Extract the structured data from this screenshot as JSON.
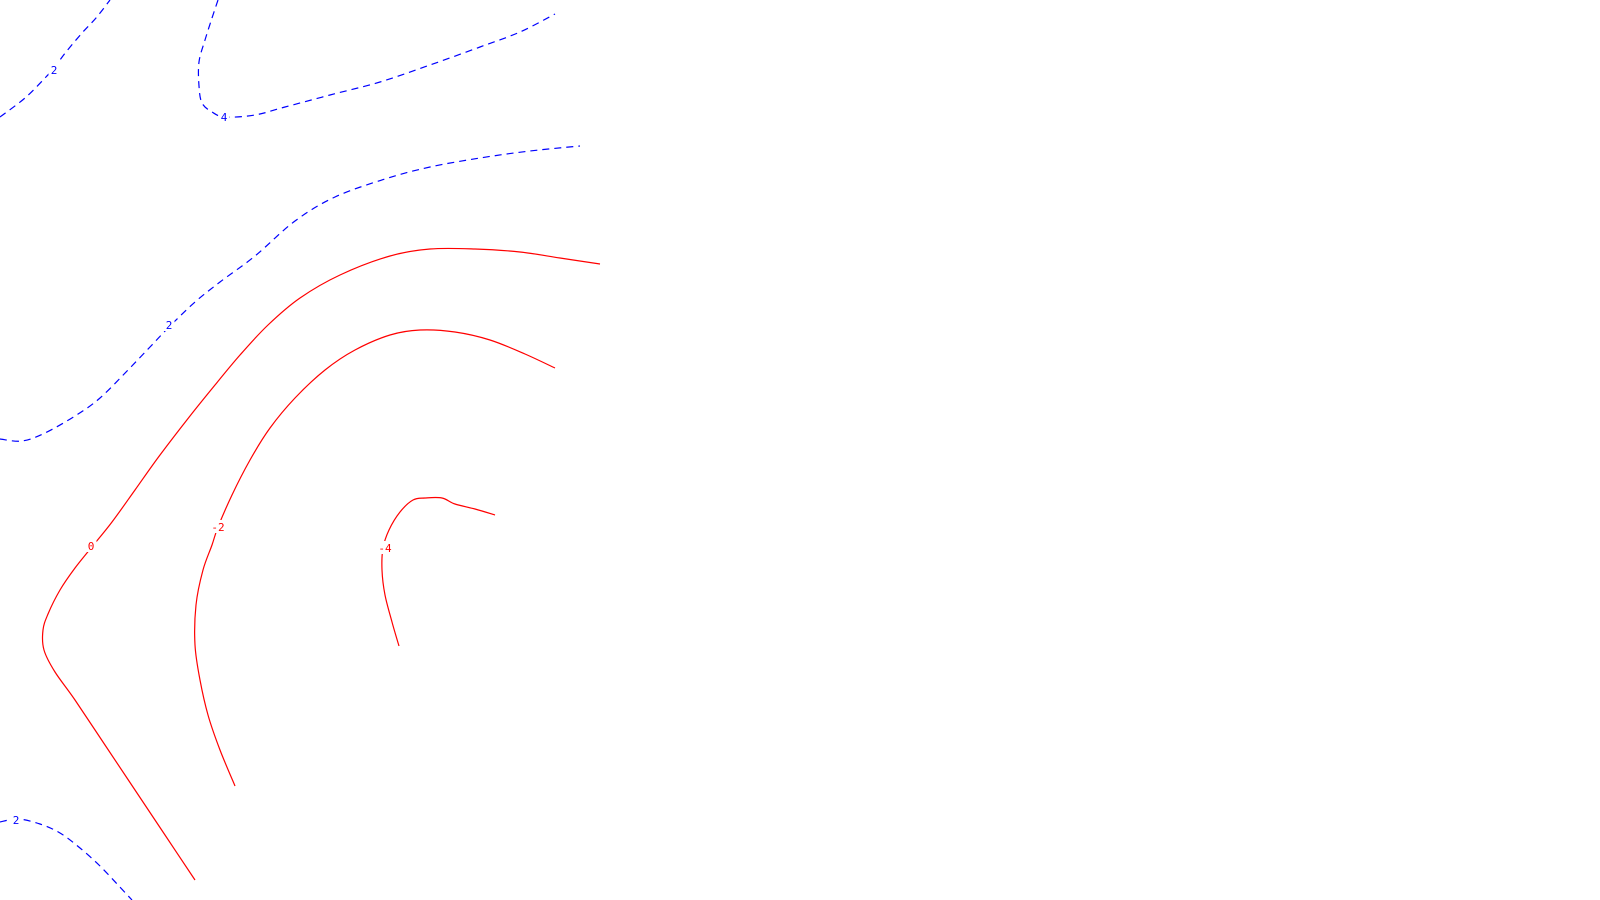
{
  "chart_data": {
    "type": "contour",
    "title": "",
    "xlabel": "",
    "ylabel": "",
    "grid": false,
    "legend": "none",
    "colors": {
      "positive": "#0000ff",
      "negative": "#ff0000",
      "background": "#ffffff"
    },
    "line_styles": {
      "positive": "dashed",
      "negative": "solid"
    },
    "levels": [
      {
        "name": "contour-2-top-left",
        "level": 2,
        "label": "2"
      },
      {
        "name": "contour-4-top",
        "level": 4,
        "label": "4"
      },
      {
        "name": "contour-2-middle",
        "level": 2,
        "label": "2"
      },
      {
        "name": "contour-0",
        "level": 0,
        "label": "0"
      },
      {
        "name": "contour-minus-2",
        "level": -2,
        "label": "-2"
      },
      {
        "name": "contour-minus-4",
        "level": -4,
        "label": "-4"
      },
      {
        "name": "contour-2-bottom-left",
        "level": 2,
        "label": "2"
      }
    ]
  }
}
